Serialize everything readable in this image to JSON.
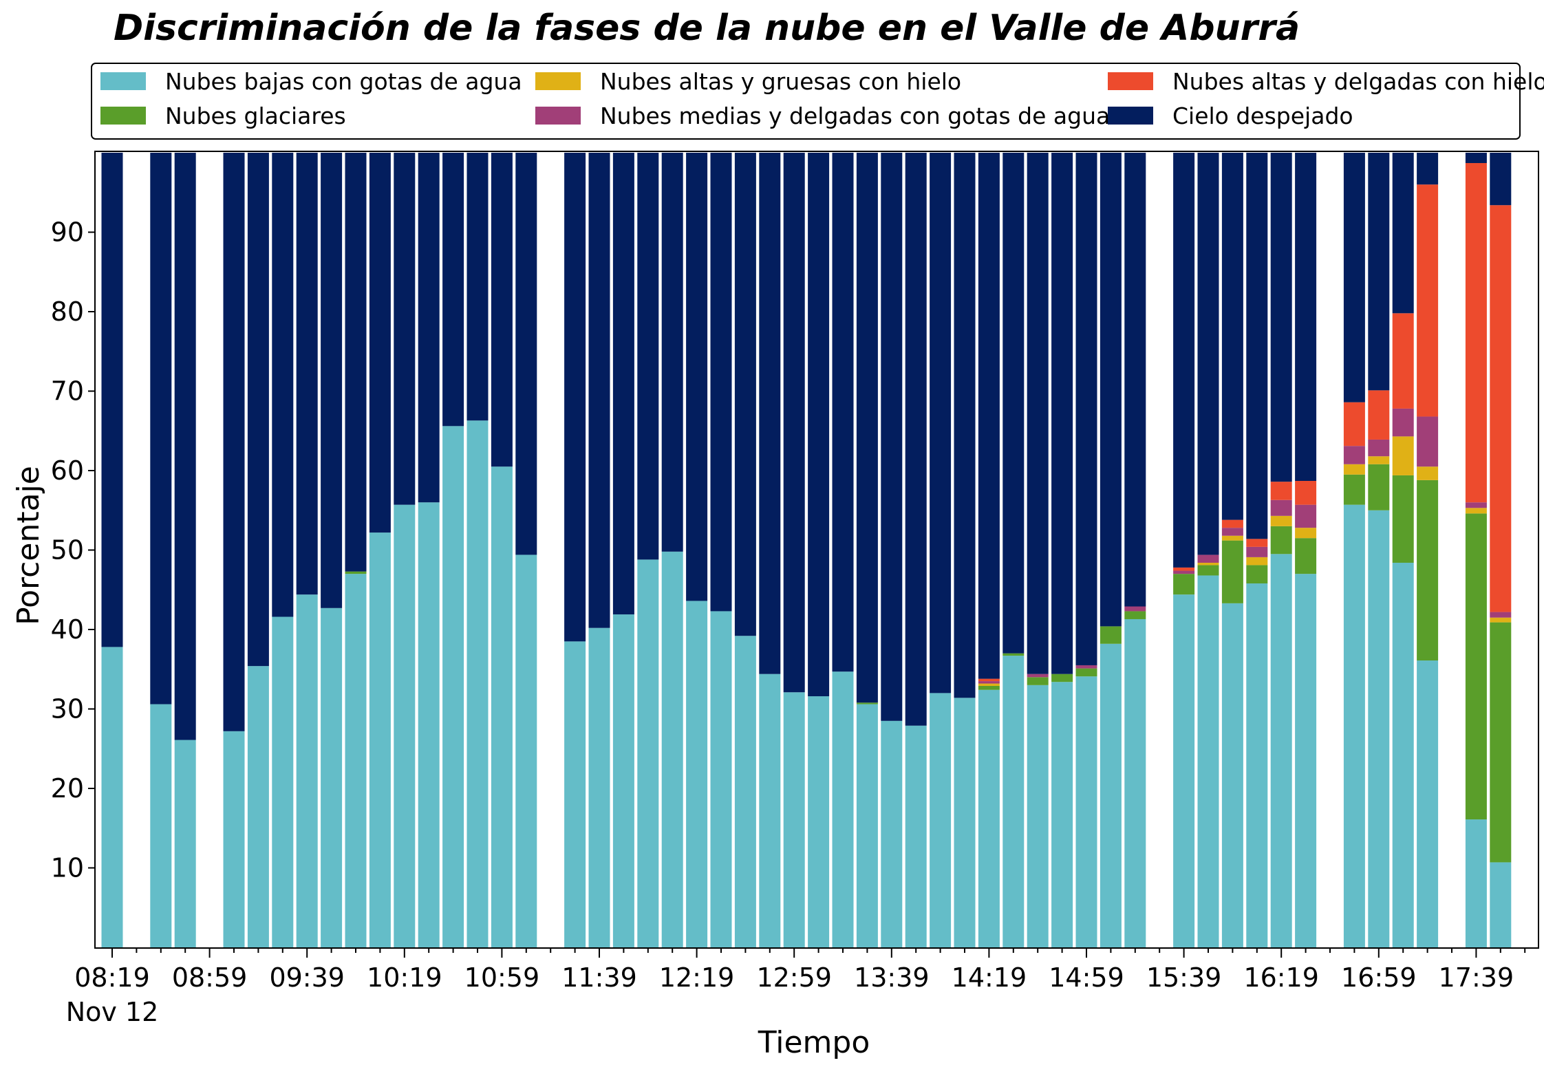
{
  "chart_data": {
    "type": "bar",
    "stacked": true,
    "title": "Discriminación de la fases de la nube en el Valle de Aburrá",
    "xlabel": "Tiempo",
    "ylabel": "Porcentaje",
    "ylim": [
      0,
      100
    ],
    "yticks": [
      10,
      20,
      30,
      40,
      50,
      60,
      70,
      80,
      90
    ],
    "xtick_labels": [
      "08:19",
      "08:59",
      "09:39",
      "10:19",
      "10:59",
      "11:39",
      "12:19",
      "12:59",
      "13:39",
      "14:19",
      "14:59",
      "15:39",
      "16:19",
      "16:59",
      "17:39"
    ],
    "x_date_label": "Nov 12",
    "grid": false,
    "legend_position": "top",
    "slots": [
      "08:19",
      "08:29",
      "08:39",
      "08:49",
      "08:59",
      "09:09",
      "09:19",
      "09:29",
      "09:39",
      "09:49",
      "09:59",
      "10:09",
      "10:19",
      "10:29",
      "10:39",
      "10:49",
      "10:59",
      "11:09",
      "11:19",
      "11:29",
      "11:39",
      "11:49",
      "11:59",
      "12:09",
      "12:19",
      "12:29",
      "12:39",
      "12:49",
      "12:59",
      "13:09",
      "13:19",
      "13:29",
      "13:39",
      "13:49",
      "13:59",
      "14:09",
      "14:19",
      "14:29",
      "14:39",
      "14:49",
      "14:59",
      "15:09",
      "15:19",
      "15:29",
      "15:39",
      "15:49",
      "15:59",
      "16:09",
      "16:19",
      "16:29",
      "16:39",
      "16:49",
      "16:59",
      "17:09",
      "17:19",
      "17:29",
      "17:39",
      "17:49"
    ],
    "series": [
      {
        "name": "Nubes bajas con gotas de agua",
        "color": "#64bdc8",
        "values": [
          37.8,
          null,
          30.6,
          26.1,
          null,
          27.2,
          35.4,
          41.6,
          44.4,
          42.7,
          47.0,
          52.2,
          55.7,
          56.0,
          65.6,
          66.3,
          60.5,
          49.4,
          null,
          38.5,
          40.2,
          41.9,
          48.8,
          49.8,
          43.6,
          42.3,
          39.2,
          34.4,
          32.1,
          31.6,
          34.7,
          30.6,
          28.5,
          27.9,
          32.0,
          31.4,
          32.4,
          36.7,
          33.0,
          33.4,
          34.1,
          38.2,
          41.3,
          null,
          44.4,
          46.8,
          43.3,
          45.8,
          49.5,
          47.0,
          null,
          55.7,
          55.0,
          48.4,
          36.1,
          null,
          16.1,
          10.7
        ]
      },
      {
        "name": "Nubes glaciares",
        "color": "#5a9e2a",
        "values": [
          0,
          null,
          0,
          0,
          null,
          0,
          0,
          0,
          0,
          0,
          0.3,
          0,
          0,
          0,
          0,
          0,
          0,
          0,
          null,
          0,
          0,
          0,
          0,
          0,
          0,
          0,
          0,
          0,
          0,
          0,
          0,
          0.2,
          0,
          0,
          0,
          0,
          0.5,
          0.3,
          1.0,
          1.0,
          1.0,
          2.2,
          1.0,
          null,
          2.6,
          1.3,
          7.9,
          2.3,
          3.5,
          4.5,
          null,
          3.8,
          5.8,
          11.0,
          22.7,
          null,
          38.5,
          30.2
        ]
      },
      {
        "name": "Nubes altas y gruesas con hielo",
        "color": "#e0b116",
        "values": [
          0,
          null,
          0,
          0,
          null,
          0,
          0,
          0,
          0,
          0,
          0,
          0,
          0,
          0,
          0,
          0,
          0,
          0,
          null,
          0,
          0,
          0,
          0,
          0,
          0,
          0,
          0,
          0,
          0,
          0,
          0,
          0,
          0,
          0,
          0,
          0,
          0.3,
          0,
          0,
          0,
          0,
          0,
          0,
          null,
          0,
          0.3,
          0.6,
          1.0,
          1.3,
          1.3,
          null,
          1.3,
          1.0,
          4.9,
          1.7,
          null,
          0.7,
          0.6
        ]
      },
      {
        "name": "Nubes medias y delgadas con gotas de agua",
        "color": "#a13f78",
        "values": [
          0,
          null,
          0,
          0,
          null,
          0,
          0,
          0,
          0,
          0,
          0,
          0,
          0,
          0,
          0,
          0,
          0,
          0,
          null,
          0,
          0,
          0,
          0,
          0,
          0,
          0,
          0,
          0,
          0,
          0,
          0,
          0,
          0,
          0,
          0,
          0,
          0.3,
          0,
          0.4,
          0,
          0.4,
          0,
          0.6,
          null,
          0.4,
          1.0,
          1.0,
          1.3,
          2.0,
          2.9,
          null,
          2.3,
          2.1,
          3.5,
          6.3,
          null,
          0.7,
          0.7
        ]
      },
      {
        "name": "Nubes altas y delgadas con hielo",
        "color": "#ed4b2d",
        "values": [
          0,
          null,
          0,
          0,
          null,
          0,
          0,
          0,
          0,
          0,
          0,
          0,
          0,
          0,
          0,
          0,
          0,
          0,
          null,
          0,
          0,
          0,
          0,
          0,
          0,
          0,
          0,
          0,
          0,
          0,
          0,
          0,
          0,
          0,
          0,
          0,
          0.3,
          0,
          0,
          0,
          0,
          0,
          0,
          null,
          0.4,
          0,
          1.0,
          1.0,
          2.3,
          3.0,
          null,
          5.5,
          6.2,
          12.0,
          29.2,
          null,
          42.7,
          51.2
        ]
      },
      {
        "name": "Cielo despejado",
        "color": "#031e5e",
        "values": [
          62.2,
          null,
          69.4,
          73.9,
          null,
          72.8,
          64.6,
          58.4,
          55.6,
          57.3,
          52.7,
          47.8,
          44.3,
          44.0,
          34.4,
          33.7,
          39.5,
          50.6,
          null,
          61.5,
          59.8,
          58.1,
          51.2,
          50.2,
          56.4,
          57.7,
          60.8,
          65.6,
          67.9,
          68.4,
          65.3,
          69.2,
          71.5,
          72.1,
          68.0,
          68.6,
          66.2,
          63.0,
          65.6,
          65.6,
          64.5,
          59.6,
          57.1,
          null,
          52.2,
          50.6,
          46.2,
          48.6,
          41.4,
          41.3,
          null,
          31.4,
          29.9,
          20.2,
          4.0,
          null,
          1.3,
          6.6
        ]
      }
    ]
  }
}
